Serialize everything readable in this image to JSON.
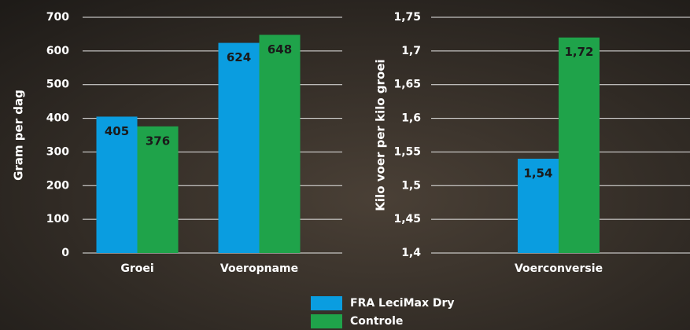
{
  "chart_data": [
    {
      "type": "bar",
      "y_label": "Gram per dag",
      "categories": [
        "Groei",
        "Voeropname"
      ],
      "series": [
        {
          "name": "FRA LeciMax Dry",
          "color": "#0a9de0",
          "values": [
            405,
            624
          ]
        },
        {
          "name": "Controle",
          "color": "#1fa34a",
          "values": [
            376,
            648
          ]
        }
      ],
      "ylim": [
        0,
        700
      ],
      "yticks": [
        0,
        100,
        200,
        300,
        400,
        500,
        600,
        700
      ],
      "grid": true
    },
    {
      "type": "bar",
      "y_label": "Kilo voer per kilo groei",
      "categories": [
        "Voerconversie"
      ],
      "series": [
        {
          "color": "#0a9de0",
          "values": [
            1.54
          ],
          "value_labels": [
            "1,54"
          ]
        },
        {
          "color": "#1fa34a",
          "values": [
            1.72
          ],
          "value_labels": [
            "1,72"
          ]
        }
      ],
      "ylim": [
        1.4,
        1.75
      ],
      "yticks": [
        {
          "value": 1.4,
          "label": "1,4"
        },
        {
          "value": 1.45,
          "label": "1,45"
        },
        {
          "value": 1.5,
          "label": "1,5"
        },
        {
          "value": 1.55,
          "label": "1,55"
        },
        {
          "value": 1.6,
          "label": "1,6"
        },
        {
          "value": 1.65,
          "label": "1,65"
        },
        {
          "value": 1.7,
          "label": "1,7"
        },
        {
          "value": 1.75,
          "label": "1,75"
        }
      ],
      "grid": true
    }
  ]
}
